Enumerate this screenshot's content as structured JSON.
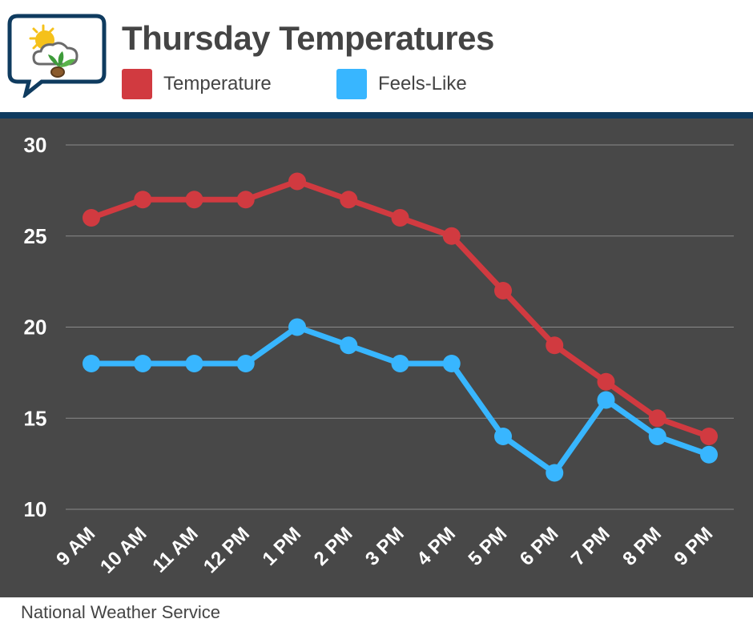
{
  "header": {
    "title": "Thursday Temperatures",
    "logo_icon": "weather-logo-icon"
  },
  "legend": [
    {
      "label": "Temperature",
      "color": "#d13a40"
    },
    {
      "label": "Feels-Like",
      "color": "#38b6ff"
    }
  ],
  "footer": {
    "source": "National Weather Service"
  },
  "colors": {
    "background": "#ffffff",
    "chart_background": "#484848",
    "divider": "#0f3b5f",
    "grid": "#8a8a8a",
    "text_dark": "#444444",
    "text_light": "#ffffff"
  },
  "chart_data": {
    "type": "line",
    "title": "Thursday Temperatures",
    "xlabel": "",
    "ylabel": "",
    "categories": [
      "9 AM",
      "10 AM",
      "11 AM",
      "12 PM",
      "1 PM",
      "2 PM",
      "3 PM",
      "4 PM",
      "5 PM",
      "6 PM",
      "7 PM",
      "8 PM",
      "9 PM"
    ],
    "ylim": [
      10,
      30
    ],
    "yticks": [
      10,
      15,
      20,
      25,
      30
    ],
    "grid": true,
    "legend_position": "top",
    "series": [
      {
        "name": "Temperature",
        "color": "#d13a40",
        "values": [
          26,
          27,
          27,
          27,
          28,
          27,
          26,
          25,
          22,
          19,
          17,
          15,
          14
        ]
      },
      {
        "name": "Feels-Like",
        "color": "#38b6ff",
        "values": [
          18,
          18,
          18,
          18,
          20,
          19,
          18,
          18,
          14,
          12,
          16,
          14,
          13
        ]
      }
    ]
  }
}
